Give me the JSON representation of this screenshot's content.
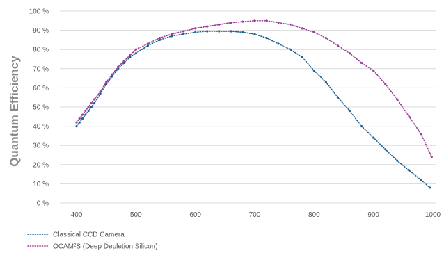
{
  "chart_data": {
    "type": "scatter",
    "title": "",
    "xlabel": "",
    "ylabel": "Quantum Efficiency",
    "xlim": [
      400,
      1000
    ],
    "ylim": [
      0,
      100
    ],
    "x_ticks": [
      "400",
      "500",
      "600",
      "700",
      "800",
      "900",
      "1000"
    ],
    "y_ticks": [
      "0 %",
      "10 %",
      "20 %",
      "30 %",
      "40 %",
      "50 %",
      "60 %",
      "70 %",
      "80 %",
      "90 %",
      "100 %"
    ],
    "grid": "horizontal",
    "legend_position": "bottom-left",
    "series": [
      {
        "name": "Classical CCD Camera",
        "color": "#1f5f8b",
        "points": [
          [
            400,
            40
          ],
          [
            405,
            42
          ],
          [
            410,
            44
          ],
          [
            415,
            46
          ],
          [
            420,
            48
          ],
          [
            425,
            50
          ],
          [
            430,
            52
          ],
          [
            440,
            57
          ],
          [
            450,
            62
          ],
          [
            460,
            66
          ],
          [
            470,
            70
          ],
          [
            480,
            73
          ],
          [
            490,
            76
          ],
          [
            500,
            78
          ],
          [
            520,
            82
          ],
          [
            540,
            85
          ],
          [
            560,
            87
          ],
          [
            580,
            88
          ],
          [
            600,
            89
          ],
          [
            620,
            89.5
          ],
          [
            640,
            89.5
          ],
          [
            660,
            89.5
          ],
          [
            680,
            89
          ],
          [
            700,
            88
          ],
          [
            720,
            86
          ],
          [
            740,
            83
          ],
          [
            760,
            80
          ],
          [
            780,
            76
          ],
          [
            800,
            69
          ],
          [
            820,
            63
          ],
          [
            840,
            55
          ],
          [
            860,
            48
          ],
          [
            880,
            40
          ],
          [
            900,
            34
          ],
          [
            920,
            28
          ],
          [
            940,
            22
          ],
          [
            960,
            17
          ],
          [
            980,
            12
          ],
          [
            995,
            8
          ]
        ]
      },
      {
        "name": "OCAM²S (Deep Depletion Silicon)",
        "color": "#9b3f99",
        "points": [
          [
            400,
            42
          ],
          [
            405,
            44
          ],
          [
            410,
            46
          ],
          [
            415,
            48
          ],
          [
            420,
            50
          ],
          [
            425,
            52
          ],
          [
            430,
            54
          ],
          [
            440,
            58
          ],
          [
            450,
            63
          ],
          [
            460,
            67
          ],
          [
            470,
            71
          ],
          [
            480,
            74
          ],
          [
            490,
            77
          ],
          [
            500,
            80
          ],
          [
            520,
            83
          ],
          [
            540,
            86
          ],
          [
            560,
            88
          ],
          [
            580,
            89.5
          ],
          [
            600,
            91
          ],
          [
            620,
            92
          ],
          [
            640,
            93
          ],
          [
            660,
            94
          ],
          [
            680,
            94.5
          ],
          [
            700,
            95
          ],
          [
            720,
            95
          ],
          [
            740,
            94
          ],
          [
            760,
            93
          ],
          [
            780,
            91
          ],
          [
            800,
            89
          ],
          [
            820,
            86
          ],
          [
            840,
            82
          ],
          [
            860,
            78
          ],
          [
            880,
            73
          ],
          [
            900,
            69
          ],
          [
            920,
            62
          ],
          [
            940,
            54
          ],
          [
            960,
            45
          ],
          [
            980,
            36
          ],
          [
            998,
            24
          ]
        ]
      }
    ]
  }
}
